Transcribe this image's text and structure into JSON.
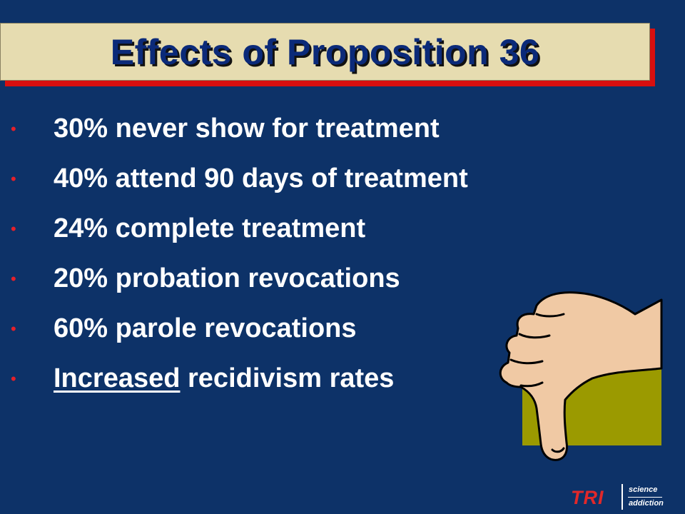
{
  "slide": {
    "title": "Effects of Proposition 36",
    "bullets": [
      {
        "text": "30% never show for treatment"
      },
      {
        "text": "40% attend 90 days of treatment"
      },
      {
        "text": "24% complete treatment"
      },
      {
        "text": "20% probation revocations"
      },
      {
        "text": "60% parole revocations"
      },
      {
        "underlined": "Increased",
        "rest": " recidivism rates"
      }
    ],
    "bullet_symbol": "•",
    "thumb_icon": "thumbs-down-icon"
  },
  "logo": {
    "name": "TRI",
    "line1": "science",
    "line2": "addiction"
  },
  "colors": {
    "background": "#0d3268",
    "title_box": "#e6dcb0",
    "title_shadow": "#d80f0f",
    "title_text": "#0b2a79",
    "bullet": "#e5202a",
    "text": "#ffffff",
    "thumb_backdrop": "#9b9a00",
    "thumb_skin": "#f0c9a4"
  }
}
